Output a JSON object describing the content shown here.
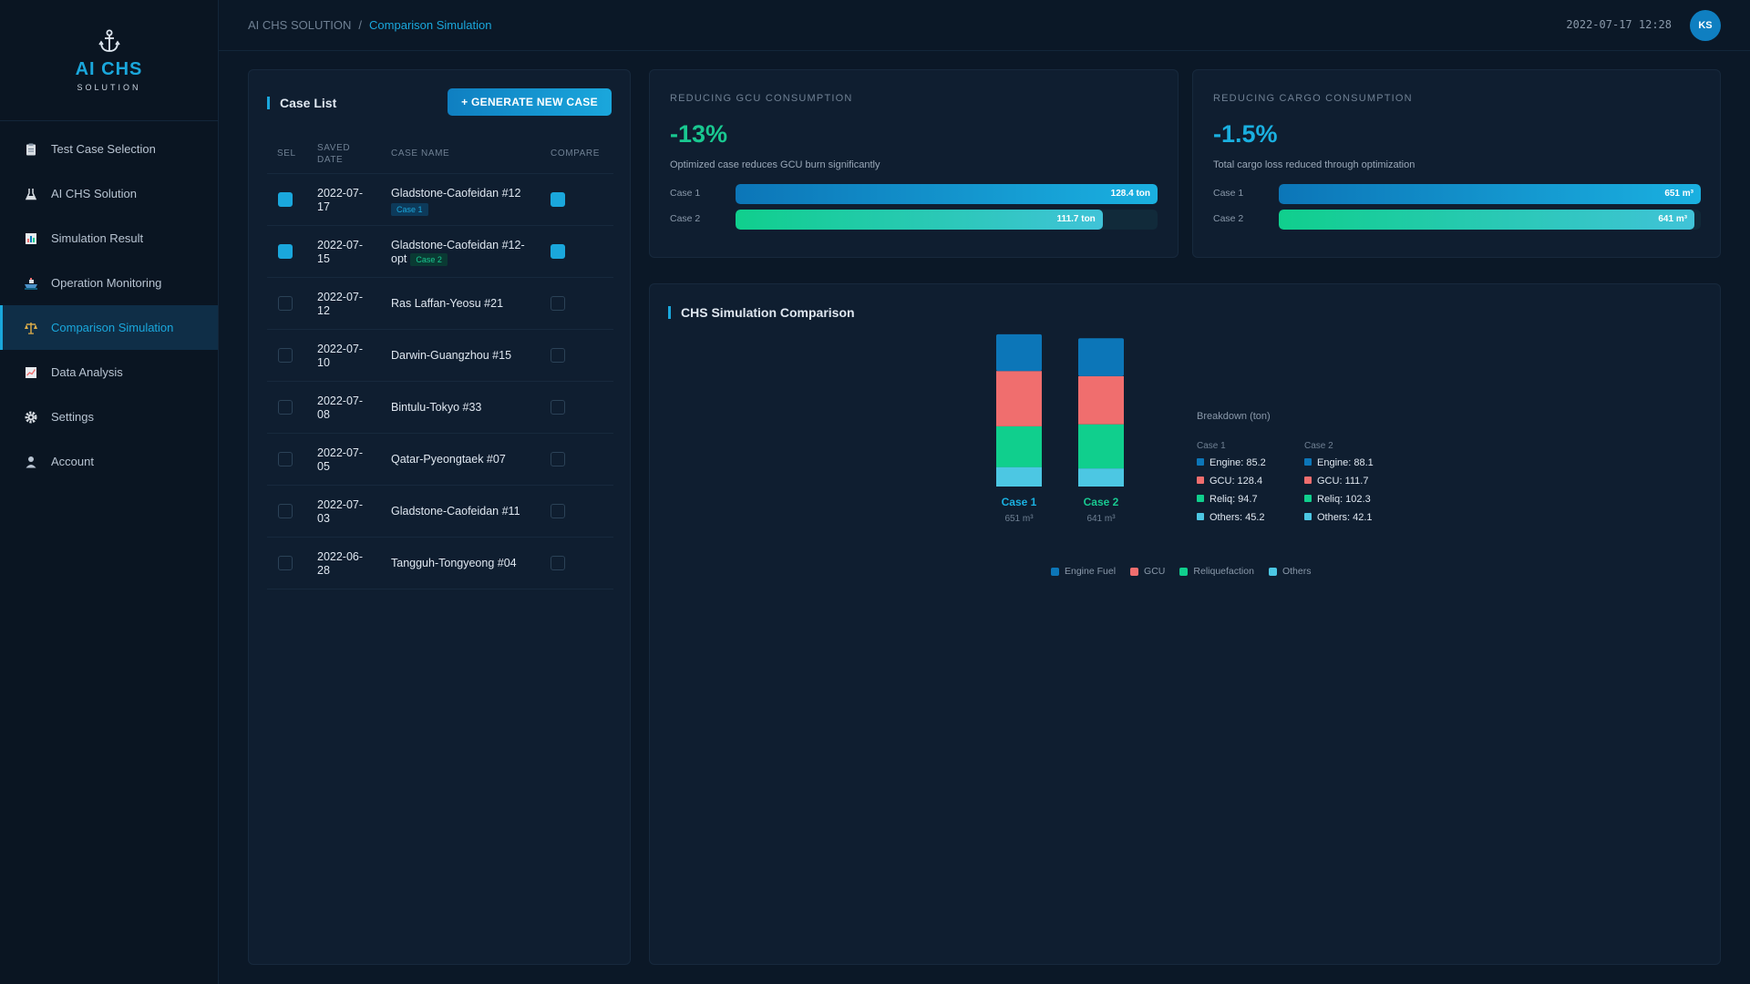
{
  "app": {
    "title": "AI CHS",
    "subtitle": "SOLUTION"
  },
  "sidebar": {
    "items": [
      {
        "label": "Test Case Selection",
        "icon": "clipboard-icon"
      },
      {
        "label": "AI CHS Solution",
        "icon": "flask-icon"
      },
      {
        "label": "Simulation Result",
        "icon": "bar-chart-icon"
      },
      {
        "label": "Operation Monitoring",
        "icon": "ship-icon"
      },
      {
        "label": "Comparison Simulation",
        "icon": "scales-icon",
        "active": true
      },
      {
        "label": "Data Analysis",
        "icon": "line-chart-icon"
      },
      {
        "label": "Settings",
        "icon": "gear-icon"
      },
      {
        "label": "Account",
        "icon": "user-icon"
      }
    ]
  },
  "header": {
    "breadcrumb_root": "AI CHS SOLUTION",
    "breadcrumb_sep": "/",
    "breadcrumb_current": "Comparison Simulation",
    "datetime": "2022-07-17 12:28",
    "avatar_initials": "KS"
  },
  "case_list": {
    "title": "Case List",
    "generate_button": "+ GENERATE NEW CASE",
    "columns": {
      "sel": "SEL",
      "saved_date_1": "SAVED",
      "saved_date_2": "DATE",
      "case_name": "CASE NAME",
      "compare": "COMPARE"
    },
    "rows": [
      {
        "date": "2022-07-17",
        "name": "Gladstone-Caofeidan #12",
        "tag": "Case 1",
        "selected": true,
        "compare": true
      },
      {
        "date": "2022-07-15",
        "name": "Gladstone-Caofeidan #12-opt",
        "tag": "Case 2",
        "selected": true,
        "compare": true
      },
      {
        "date": "2022-07-12",
        "name": "Ras Laffan-Yeosu #21",
        "tag": "",
        "selected": false,
        "compare": false
      },
      {
        "date": "2022-07-10",
        "name": "Darwin-Guangzhou #15",
        "tag": "",
        "selected": false,
        "compare": false
      },
      {
        "date": "2022-07-08",
        "name": "Bintulu-Tokyo #33",
        "tag": "",
        "selected": false,
        "compare": false
      },
      {
        "date": "2022-07-05",
        "name": "Qatar-Pyeongtaek #07",
        "tag": "",
        "selected": false,
        "compare": false
      },
      {
        "date": "2022-07-03",
        "name": "Gladstone-Caofeidan #11",
        "tag": "",
        "selected": false,
        "compare": false
      },
      {
        "date": "2022-06-28",
        "name": "Tangguh-Tongyeong #04",
        "tag": "",
        "selected": false,
        "compare": false
      }
    ]
  },
  "gcu_stat": {
    "label": "REDUCING GCU CONSUMPTION",
    "value": "-13%",
    "value_color": "#19c890",
    "description": "Optimized case reduces GCU burn significantly",
    "bars": [
      {
        "label": "Case 1",
        "value_text": "128.4 ton",
        "fraction": 1.0
      },
      {
        "label": "Case 2",
        "value_text": "111.7 ton",
        "fraction": 0.87
      }
    ]
  },
  "cargo_stat": {
    "label": "REDUCING CARGO CONSUMPTION",
    "value": "-1.5%",
    "value_color": "#1ab0e0",
    "description": "Total cargo loss reduced through optimization",
    "bars": [
      {
        "label": "Case 1",
        "value_text": "651 m³",
        "fraction": 1.0
      },
      {
        "label": "Case 2",
        "value_text": "641 m³",
        "fraction": 0.985
      }
    ]
  },
  "comparison": {
    "title": "CHS Simulation Comparison",
    "legend": [
      {
        "name": "Engine Fuel",
        "color": "#0c76b8"
      },
      {
        "name": "GCU",
        "color": "#f06e6e"
      },
      {
        "name": "Reliquefaction",
        "color": "#10cf8d"
      },
      {
        "name": "Others",
        "color": "#4cc7e3"
      }
    ],
    "breakdown_title": "Breakdown (ton)"
  },
  "chart_data": {
    "type": "bar",
    "stacked": true,
    "categories": [
      "Case 1",
      "Case 2"
    ],
    "category_colors": [
      "#1ab0e0",
      "#19c890"
    ],
    "category_subtitles": [
      "651 m³",
      "641 m³"
    ],
    "series": [
      {
        "name": "Engine Fuel",
        "values": [
          85.2,
          88.1
        ],
        "color": "#0c76b8"
      },
      {
        "name": "GCU",
        "values": [
          128.4,
          111.7
        ],
        "color": "#f06e6e"
      },
      {
        "name": "Reliquefaction",
        "values": [
          94.7,
          102.3
        ],
        "color": "#10cf8d"
      },
      {
        "name": "Others",
        "values": [
          45.2,
          42.1
        ],
        "color": "#4cc7e3"
      }
    ],
    "breakdown": [
      {
        "title": "Case 1",
        "entries": [
          "Engine: 85.2",
          "GCU: 128.4",
          "Reliq: 94.7",
          "Others: 45.2"
        ]
      },
      {
        "title": "Case 2",
        "entries": [
          "Engine: 88.1",
          "GCU: 111.7",
          "Reliq: 102.3",
          "Others: 42.1"
        ]
      }
    ],
    "legend_position": "bottom",
    "grid": false
  }
}
